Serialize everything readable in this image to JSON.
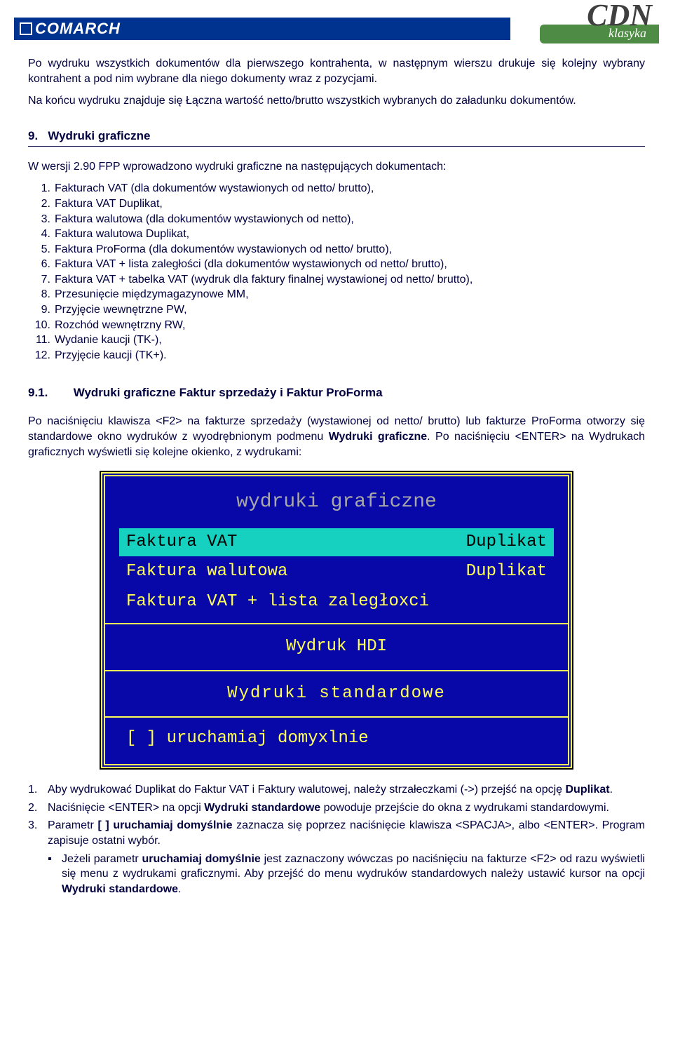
{
  "header": {
    "comarch": "COMARCH",
    "cdn": "CDN",
    "klasyka": "klasyka"
  },
  "intro_para": "Po wydruku wszystkich dokumentów dla pierwszego kontrahenta, w następnym wierszu drukuje się kolejny wybrany kontrahent a pod nim wybrane dla niego dokumenty wraz z pozycjami.",
  "intro_para2": "Na końcu wydruku znajduje się Łączna wartość netto/brutto wszystkich wybranych do załadunku dokumentów.",
  "section9": {
    "number": "9.",
    "title": "Wydruki graficzne"
  },
  "list_intro": "W wersji 2.90 FPP wprowadzono wydruki graficzne na następujących dokumentach:",
  "list9": [
    "Fakturach VAT (dla dokumentów wystawionych od netto/ brutto),",
    "Faktura VAT Duplikat,",
    "Faktura walutowa (dla dokumentów wystawionych od netto),",
    "Faktura walutowa Duplikat,",
    "Faktura ProForma (dla dokumentów wystawionych od netto/ brutto),",
    "Faktura VAT + lista zaległości (dla dokumentów wystawionych od netto/ brutto),",
    "Faktura VAT + tabelka VAT (wydruk dla faktury finalnej wystawionej od netto/ brutto),",
    "Przesunięcie międzymagazynowe MM,",
    "Przyjęcie wewnętrzne PW,",
    "Rozchód wewnętrzny RW,",
    "Wydanie kaucji (TK-),",
    "Przyjęcie kaucji (TK+)."
  ],
  "section91": {
    "number": "9.1.",
    "title": "Wydruki graficzne Faktur sprzedaży i Faktur ProForma"
  },
  "para91_pre": "Po naciśnięciu klawisza <F2> na fakturze sprzedaży (wystawionej od netto/ brutto) lub fakturze ProForma otworzy się standardowe okno wydruków z wyodrębnionym podmenu ",
  "para91_bold": "Wydruki graficzne",
  "para91_post": ". Po naciśnięciu <ENTER> na Wydrukach graficznych wyświetli się kolejne okienko, z wydrukami:",
  "dos": {
    "title": "wydruki graficzne",
    "row1_left": "Faktura VAT",
    "row1_right": "Duplikat",
    "row2_left": "Faktura walutowa",
    "row2_right": "Duplikat",
    "row3": "Faktura VAT + lista zaległoxci",
    "row4": "Wydruk   HDI",
    "row5": "Wydruki  standardowe",
    "checkbox": "[ ]  uruchamiaj domyxlnie"
  },
  "bottom": [
    {
      "n": "1.",
      "pre": "Aby wydrukować Duplikat do Faktur VAT i Faktury walutowej, należy strzałeczkami (->) przejść na opcję ",
      "b": "Duplikat",
      "post": "."
    },
    {
      "n": "2.",
      "pre": "Naciśnięcie <ENTER> na opcji ",
      "b": "Wydruki standardowe",
      "post": " powoduje przejście do okna z wydrukami standardowymi."
    },
    {
      "n": "3.",
      "pre": "Parametr ",
      "b": "[ ] uruchamiaj domyślnie",
      "post": " zaznacza się poprzez naciśnięcie klawisza <SPACJA>, albo <ENTER>. Program zapisuje ostatni wybór."
    }
  ],
  "sub_bullet": {
    "pre": "Jeżeli parametr ",
    "b1": "uruchamiaj domyślnie",
    "mid": " jest zaznaczony wówczas po naciśnięciu na fakturze <F2> od razu wyświetli się menu z wydrukami graficznymi. Aby przejść do menu wydruków standardowych należy ustawić kursor na opcji ",
    "b2": "Wydruki standardowe",
    "post": "."
  }
}
